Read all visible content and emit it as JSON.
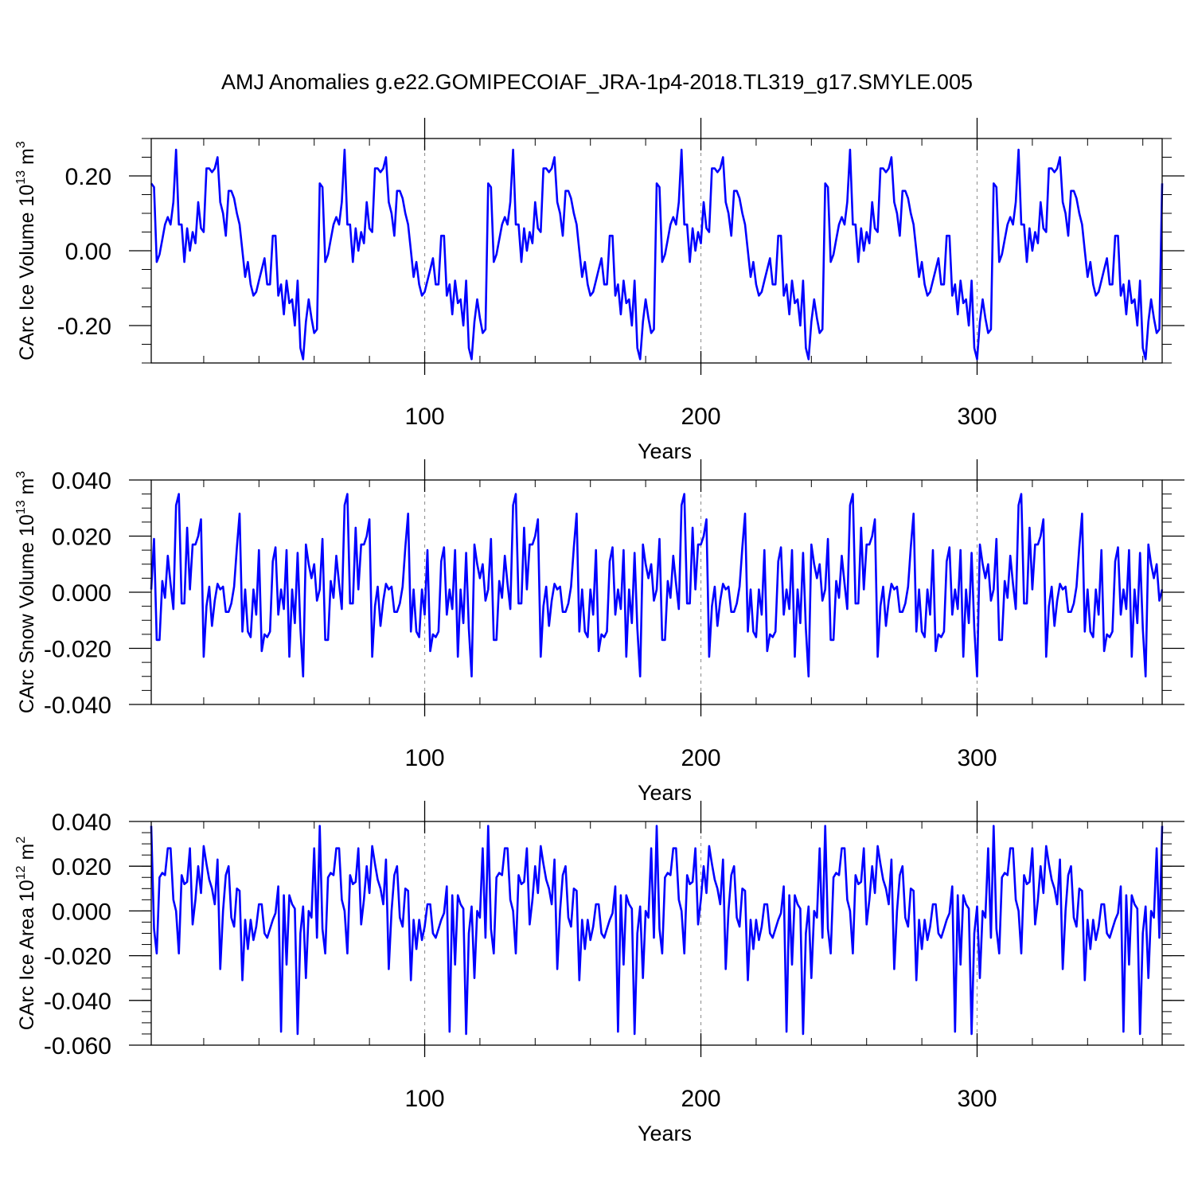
{
  "title": "AMJ Anomalies g.e22.GOMIPECOIAF_JRA-1p4-2018.TL319_g17.SMYLE.005",
  "colors": {
    "series": "#0000ff",
    "axis": "#000000",
    "refline": "#999999"
  },
  "chart_data": [
    {
      "type": "line",
      "name": "ice-volume",
      "ylabel": {
        "text": "CArc Ice Volume 10",
        "sup": "13",
        "unit": " m",
        "unit_sup": "3"
      },
      "xlabel": "Years",
      "xlim": [
        1,
        367
      ],
      "ylim": [
        -0.3,
        0.3
      ],
      "xticks": [
        100,
        200,
        300
      ],
      "xtick_labels": [
        "100",
        "200",
        "300"
      ],
      "yticks": [
        -0.2,
        0.0,
        0.2
      ],
      "ytick_labels": [
        "-0.20",
        "0.00",
        "0.20"
      ],
      "ref_lines_x": [
        100,
        200,
        300
      ],
      "period": 61,
      "template": [
        0.18,
        0.17,
        -0.03,
        -0.01,
        0.03,
        0.07,
        0.09,
        0.07,
        0.13,
        0.27,
        0.07,
        0.07,
        -0.03,
        0.06,
        0.0,
        0.05,
        0.02,
        0.13,
        0.06,
        0.05,
        0.22,
        0.22,
        0.21,
        0.22,
        0.25,
        0.13,
        0.1,
        0.04,
        0.16,
        0.16,
        0.14,
        0.1,
        0.07,
        0.0,
        -0.07,
        -0.03,
        -0.09,
        -0.12,
        -0.11,
        -0.08,
        -0.05,
        -0.02,
        -0.09,
        -0.09,
        0.04,
        0.04,
        -0.12,
        -0.09,
        -0.17,
        -0.08,
        -0.14,
        -0.13,
        -0.2,
        -0.08,
        -0.26,
        -0.29,
        -0.19,
        -0.13,
        -0.18,
        -0.22,
        -0.21
      ]
    },
    {
      "type": "line",
      "name": "snow-volume",
      "ylabel": {
        "text": "CArc Snow Volume 10",
        "sup": "13",
        "unit": " m",
        "unit_sup": "3"
      },
      "xlabel": "Years",
      "xlim": [
        1,
        367
      ],
      "ylim": [
        -0.04,
        0.04
      ],
      "xticks": [
        100,
        200,
        300
      ],
      "xtick_labels": [
        "100",
        "200",
        "300"
      ],
      "yticks": [
        -0.04,
        -0.02,
        0.0,
        0.02,
        0.04
      ],
      "ytick_labels": [
        "-0.040",
        "-0.020",
        "0.000",
        "0.020",
        "0.040"
      ],
      "ref_lines_x": [
        100,
        200,
        300
      ],
      "period": 61,
      "template": [
        0.001,
        0.019,
        -0.017,
        -0.017,
        0.004,
        -0.002,
        0.013,
        0.003,
        -0.006,
        0.031,
        0.035,
        -0.004,
        -0.004,
        0.023,
        0.001,
        0.017,
        0.017,
        0.02,
        0.026,
        -0.023,
        -0.005,
        0.002,
        -0.012,
        -0.003,
        0.003,
        0.001,
        0.002,
        -0.007,
        -0.007,
        -0.004,
        0.002,
        0.016,
        0.028,
        -0.014,
        0.001,
        -0.014,
        -0.016,
        0.001,
        -0.008,
        0.015,
        -0.021,
        -0.015,
        -0.016,
        -0.014,
        0.011,
        0.016,
        -0.008,
        0.001,
        -0.006,
        0.015,
        -0.023,
        0.001,
        -0.011,
        0.014,
        -0.013,
        -0.03,
        0.017,
        0.01,
        0.005,
        0.01,
        -0.003
      ]
    },
    {
      "type": "line",
      "name": "ice-area",
      "ylabel": {
        "text": "CArc Ice Area 10",
        "sup": "12",
        "unit": " m",
        "unit_sup": "2"
      },
      "xlabel": "Years",
      "xlim": [
        1,
        367
      ],
      "ylim": [
        -0.06,
        0.04
      ],
      "xticks": [
        100,
        200,
        300
      ],
      "xtick_labels": [
        "100",
        "200",
        "300"
      ],
      "yticks": [
        -0.06,
        -0.04,
        -0.02,
        0.0,
        0.02,
        0.04
      ],
      "ytick_labels": [
        "-0.060",
        "-0.040",
        "-0.020",
        "0.000",
        "0.020",
        "0.040"
      ],
      "ref_lines_x": [
        100,
        200,
        300
      ],
      "period": 61,
      "template": [
        0.038,
        -0.008,
        -0.019,
        0.015,
        0.017,
        0.016,
        0.028,
        0.028,
        0.005,
        0.0,
        -0.019,
        0.016,
        0.012,
        0.013,
        0.028,
        -0.006,
        0.005,
        0.02,
        0.008,
        0.029,
        0.021,
        0.014,
        0.01,
        0.003,
        0.023,
        -0.026,
        0.0,
        0.016,
        0.02,
        -0.003,
        -0.007,
        0.01,
        0.009,
        -0.031,
        -0.004,
        -0.017,
        -0.004,
        -0.013,
        -0.007,
        0.003,
        0.003,
        -0.01,
        -0.012,
        -0.008,
        -0.004,
        -0.001,
        0.011,
        -0.054,
        0.007,
        -0.024,
        0.007,
        0.003,
        0.001,
        -0.055,
        -0.01,
        0.002,
        -0.03,
        0.0,
        -0.003,
        0.028,
        -0.012
      ]
    }
  ]
}
